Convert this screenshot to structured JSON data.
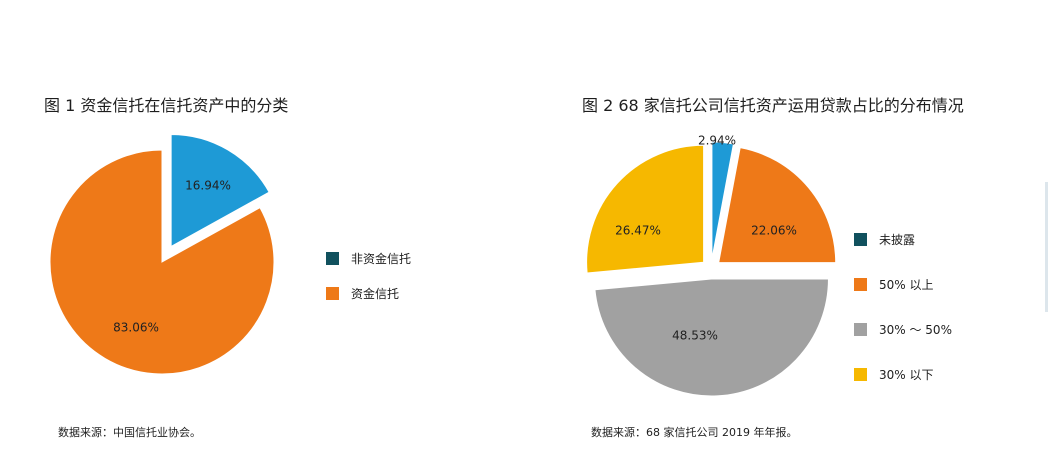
{
  "left_figure": {
    "title": "图 1  资金信托在信托资产中的分类",
    "source": "数据来源：中国信托业协会。"
  },
  "right_figure": {
    "title": "图 2  68 家信托公司信托资产运用贷款占比的分布情况",
    "source": "数据来源：68 家信托公司 2019 年年报。"
  },
  "chart_data": [
    {
      "type": "pie",
      "title": "图 1  资金信托在信托资产中的分类",
      "legend": [
        {
          "label": "非资金信托",
          "color": "#11515e"
        },
        {
          "label": "资金信托",
          "color": "#ee7918"
        }
      ],
      "slices": [
        {
          "label": "非资金信托",
          "value": 16.94,
          "display": "16.94%",
          "color": "#1e9ad6",
          "exploded": true
        },
        {
          "label": "资金信托",
          "value": 83.06,
          "display": "83.06%",
          "color": "#ee7918",
          "exploded": false
        }
      ],
      "legend_placement": "right"
    },
    {
      "type": "pie",
      "title": "图 2  68 家信托公司信托资产运用贷款占比的分布情况",
      "legend": [
        {
          "label": "未披露",
          "color": "#11515e"
        },
        {
          "label": "50% 以上",
          "color": "#ee7918"
        },
        {
          "label": "30% 〜 50%",
          "color": "#a1a1a1"
        },
        {
          "label": "30% 以下",
          "color": "#f6b800"
        }
      ],
      "slices": [
        {
          "label": "未披露",
          "value": 2.94,
          "display": "2.94%",
          "color": "#1e9ad6",
          "exploded": true
        },
        {
          "label": "50% 以上",
          "value": 22.06,
          "display": "22.06%",
          "color": "#ee7918",
          "exploded": true
        },
        {
          "label": "30% 〜 50%",
          "value": 48.53,
          "display": "48.53%",
          "color": "#a1a1a1",
          "exploded": true
        },
        {
          "label": "30% 以下",
          "value": 26.47,
          "display": "26.47%",
          "color": "#f6b800",
          "exploded": true
        }
      ],
      "legend_placement": "right"
    }
  ]
}
